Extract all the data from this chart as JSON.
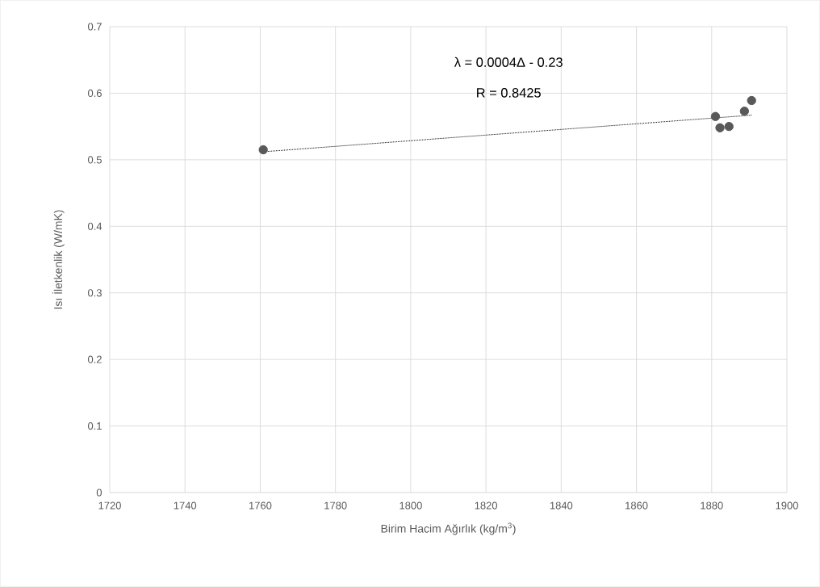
{
  "chart_data": {
    "type": "scatter",
    "xlabel": "Birim Hacim Ağırlık (kg/m$^{3}$)",
    "ylabel": "Isı İletkenlik (W/mK)",
    "annotations": [
      "λ = 0.0004Δ - 0.23",
      "R = 0.8425"
    ],
    "series": [
      {
        "color": "#595959",
        "marker": "circle",
        "x": [
          1760.8,
          1881.0,
          1882.2,
          1884.6,
          1888.7,
          1890.6
        ],
        "values": [
          0.515,
          0.565,
          0.548,
          0.55,
          0.573,
          0.589
        ]
      },
      {
        "type": "line",
        "color": "#000000",
        "marker": "none",
        "line_style": "dotted",
        "x": [
          1760.8,
          1890.6
        ],
        "values": [
          0.512,
          0.567
        ]
      }
    ],
    "xlim": [
      1720,
      1900
    ],
    "xticks": [
      1720,
      1740,
      1760,
      1780,
      1800,
      1820,
      1840,
      1860,
      1880,
      1900
    ],
    "ylim": [
      0,
      0.7
    ],
    "yticks": [
      0,
      0.1,
      0.2,
      0.3,
      0.4,
      0.5,
      0.6,
      0.7
    ],
    "grid": true
  }
}
